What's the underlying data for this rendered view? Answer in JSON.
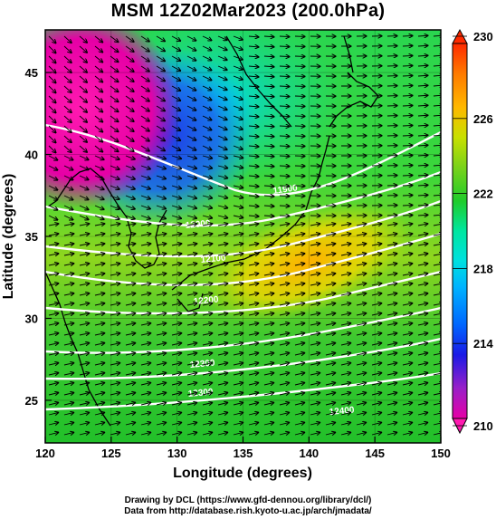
{
  "title": "MSM 12Z02Mar2023 (200.0hPa)",
  "axes": {
    "xlabel": "Longitude (degrees)",
    "ylabel": "Latitude  (degrees)",
    "xlim": [
      120,
      150
    ],
    "ylim": [
      22.4,
      47.6
    ],
    "xticks": [
      120,
      125,
      130,
      135,
      140,
      145,
      150
    ],
    "yticks": [
      25,
      30,
      35,
      40,
      45
    ]
  },
  "colorbar": {
    "min": 210,
    "max": 230,
    "tick_labels": [
      "230",
      "226",
      "222",
      "218",
      "214",
      "210"
    ],
    "colors": [
      "#e600a6",
      "#7a2be0",
      "#1a1ae6",
      "#0066ff",
      "#00b3ff",
      "#00e0e0",
      "#00e6a0",
      "#00d65a",
      "#1fcc2a",
      "#7ad21a",
      "#c8e000",
      "#f0e000",
      "#ffb800",
      "#ff7a00",
      "#ff2a00"
    ]
  },
  "contours": {
    "labels": [
      "11900",
      "12000",
      "12100",
      "12200",
      "12300",
      "12400"
    ]
  },
  "credits": {
    "line1": "Drawing by DCL (https://www.gfd-dennou.org/library/dcl/)",
    "line2": "Data from http://database.rish.kyoto-u.ac.jp/arch/jmadata/"
  }
}
